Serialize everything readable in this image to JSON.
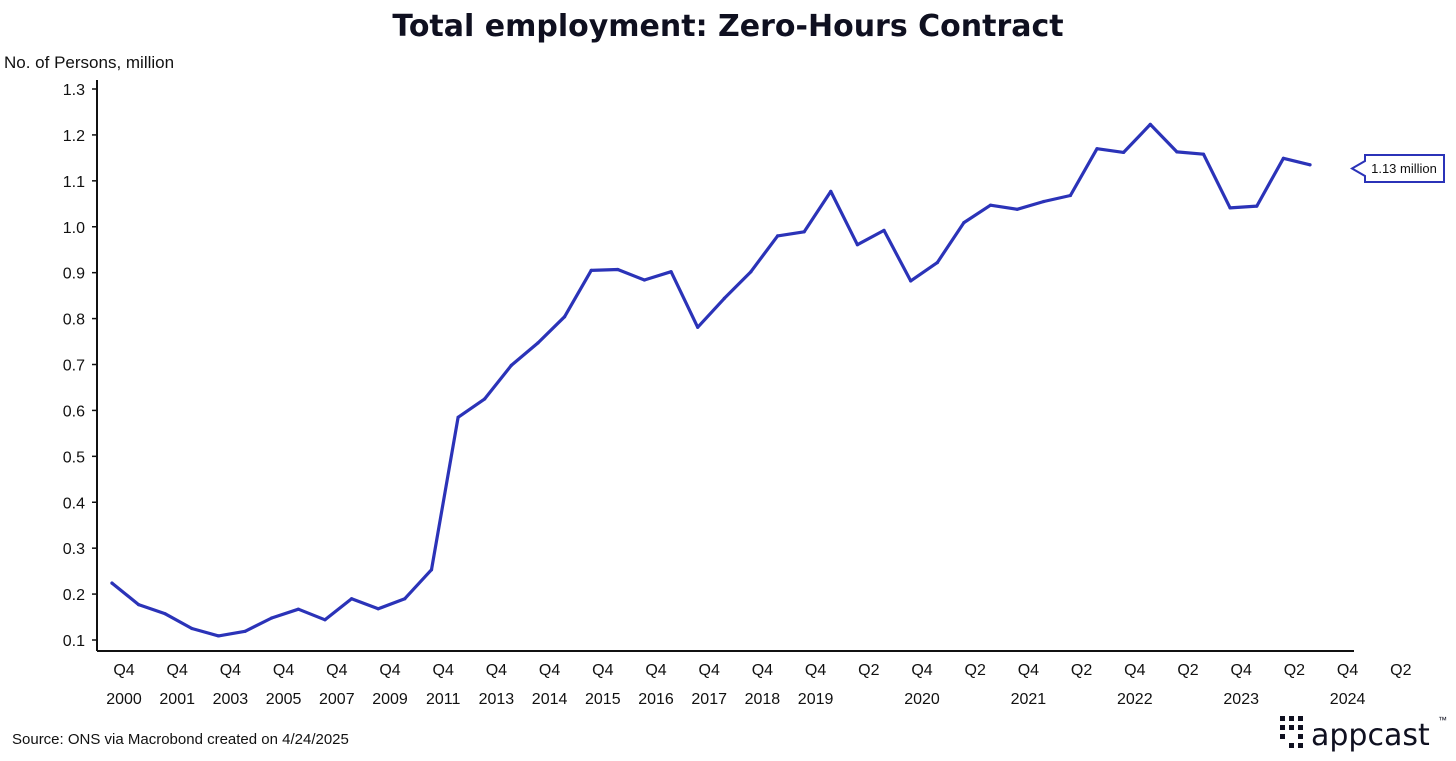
{
  "title": "Total employment: Zero-Hours Contract",
  "source": "Source: ONS via Macrobond created on 4/24/2025",
  "logo": {
    "text": "appcast",
    "tm": "™"
  },
  "colors": {
    "line": "#2b33b8",
    "text": "#111111",
    "axis": "#111111"
  },
  "chart_data": {
    "type": "line",
    "title": "Total employment: Zero-Hours Contract",
    "ylabel": "No. of Persons, million",
    "xlabel": "",
    "ylim": [
      0.1,
      1.3
    ],
    "yticks": [
      "1.3",
      "1.2",
      "1.1",
      "1.0",
      "0.9",
      "0.8",
      "0.7",
      "0.6",
      "0.5",
      "0.4",
      "0.3",
      "0.2",
      "0.1"
    ],
    "xticks": [
      {
        "q": "Q4",
        "y": "2000"
      },
      {
        "q": "Q4",
        "y": "2001"
      },
      {
        "q": "Q4",
        "y": "2003"
      },
      {
        "q": "Q4",
        "y": "2005"
      },
      {
        "q": "Q4",
        "y": "2007"
      },
      {
        "q": "Q4",
        "y": "2009"
      },
      {
        "q": "Q4",
        "y": "2011"
      },
      {
        "q": "Q4",
        "y": "2013"
      },
      {
        "q": "Q4",
        "y": "2014"
      },
      {
        "q": "Q4",
        "y": "2015"
      },
      {
        "q": "Q4",
        "y": "2016"
      },
      {
        "q": "Q4",
        "y": "2017"
      },
      {
        "q": "Q4",
        "y": "2018"
      },
      {
        "q": "Q4",
        "y": "2019"
      },
      {
        "q": "Q2",
        "y": ""
      },
      {
        "q": "Q4",
        "y": "2020"
      },
      {
        "q": "Q2",
        "y": ""
      },
      {
        "q": "Q4",
        "y": "2021"
      },
      {
        "q": "Q2",
        "y": ""
      },
      {
        "q": "Q4",
        "y": "2022"
      },
      {
        "q": "Q2",
        "y": ""
      },
      {
        "q": "Q4",
        "y": "2023"
      },
      {
        "q": "Q2",
        "y": ""
      },
      {
        "q": "Q4",
        "y": "2024"
      },
      {
        "q": "Q2",
        "y": ""
      }
    ],
    "series": [
      {
        "values": [
          0.224,
          0.177,
          0.157,
          0.125,
          0.109,
          0.119,
          0.148,
          0.167,
          0.144,
          0.19,
          0.168,
          0.19,
          0.253,
          0.585,
          0.625,
          0.698,
          0.747,
          0.804,
          0.905,
          0.907,
          0.884,
          0.902,
          0.781,
          0.844,
          0.902,
          0.98,
          0.989,
          1.077,
          0.961,
          0.992,
          0.882,
          0.922,
          1.009,
          1.047,
          1.038,
          1.055,
          1.068,
          1.17,
          1.162,
          1.223,
          1.163,
          1.158,
          1.041,
          1.045,
          1.149,
          1.135
        ]
      }
    ],
    "annotation": "1.13 million",
    "grid": false,
    "legend": "none"
  }
}
